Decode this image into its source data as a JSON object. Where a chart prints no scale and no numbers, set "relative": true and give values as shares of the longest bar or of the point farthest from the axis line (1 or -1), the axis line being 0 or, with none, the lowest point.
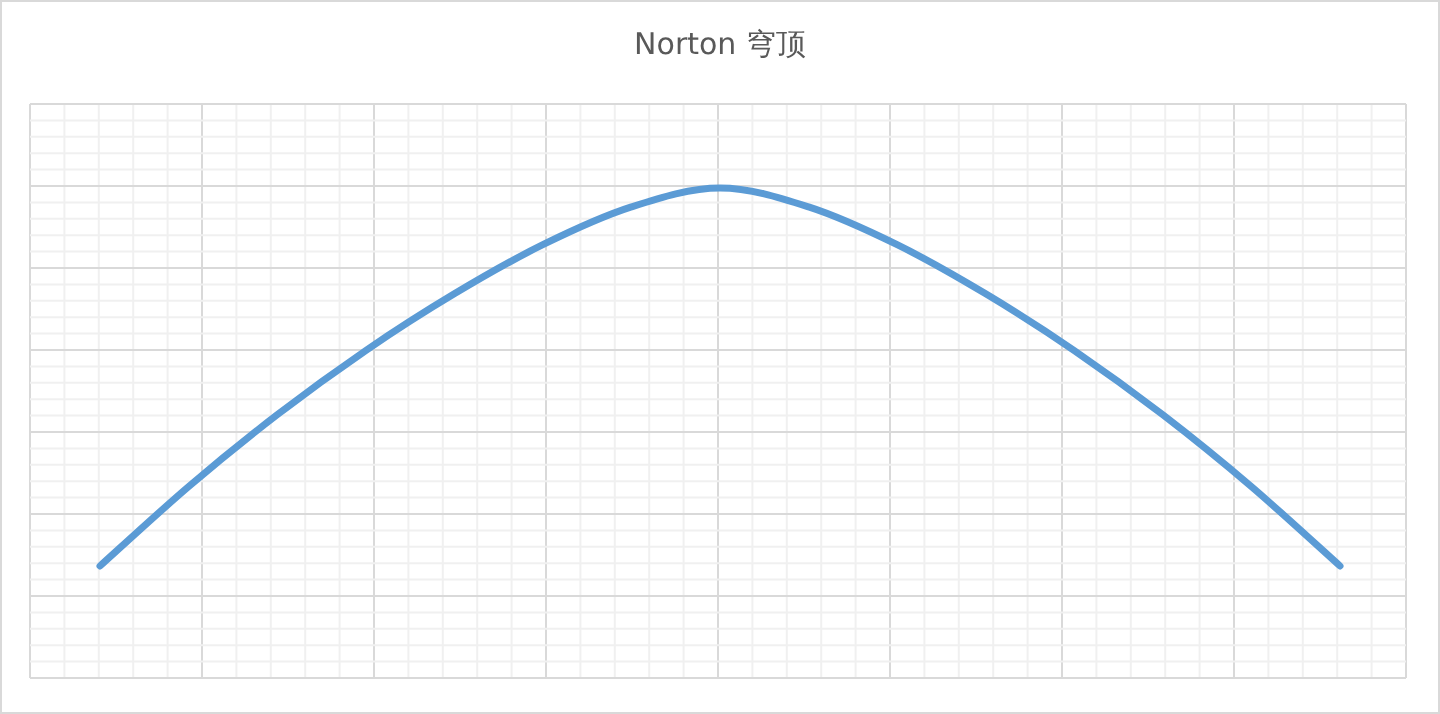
{
  "chart_data": {
    "type": "line",
    "title": "Norton 穹顶",
    "relative": true,
    "grid": true,
    "tick_labels": false,
    "marker": "none",
    "line_style": "solid",
    "categories": [
      null,
      null,
      null,
      null,
      null,
      null,
      null,
      null,
      null,
      null,
      null,
      null,
      null,
      null,
      null
    ],
    "series": [
      {
        "color": "#5b9bd5",
        "values": [
          0,
          0.21,
          0.4,
          0.57,
          0.72,
          0.85,
          0.95,
          1,
          0.95,
          0.85,
          0.72,
          0.57,
          0.4,
          0.21,
          0
        ]
      }
    ]
  }
}
